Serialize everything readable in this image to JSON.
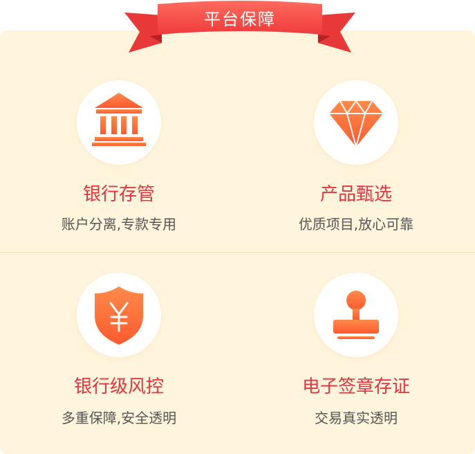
{
  "header": {
    "title": "平台保障"
  },
  "colors": {
    "panel_bg": "#fff4dc",
    "ribbon": "#f04a4a",
    "title_red": "#e8343f",
    "icon_orange": "#ff6a3a",
    "desc_gray": "#555555"
  },
  "features": [
    {
      "title": "银行存管",
      "desc": "账户分离,专款专用",
      "icon": "bank-icon"
    },
    {
      "title": "产品甄选",
      "desc": "优质项目,放心可靠",
      "icon": "diamond-icon"
    },
    {
      "title": "银行级风控",
      "desc": "多重保障,安全透明",
      "icon": "yuan-shield-icon"
    },
    {
      "title": "电子签章存证",
      "desc": "交易真实透明",
      "icon": "stamp-icon"
    }
  ]
}
